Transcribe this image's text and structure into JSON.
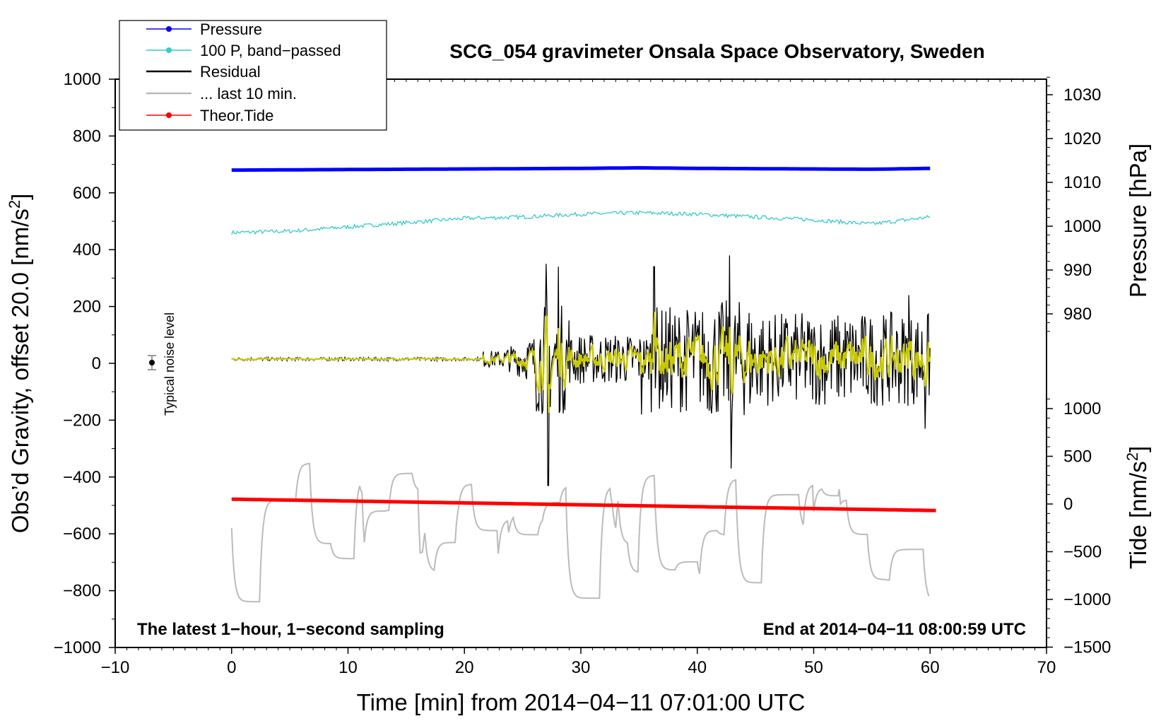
{
  "chart_data": {
    "type": "line",
    "title": "SCG_054 gravimeter Onsala Space Observatory, Sweden",
    "xlabel": "Time [min] from 2014−04−11 07:01:00 UTC",
    "ylabel_left": "Obs’d Gravity, offset 20.0 [nm/s",
    "ylabel_left_sup": "2",
    "ylabel_left_end": "]",
    "ylabel_right_pressure": "Pressure [hPa]",
    "ylabel_right_tide": "Tide [nm/s",
    "ylabel_right_tide_sup": "2",
    "ylabel_right_tide_end": "]",
    "xlim": [
      -10,
      70
    ],
    "ylim_left": [
      -1000,
      1000
    ],
    "x_ticks": [
      -10,
      0,
      10,
      20,
      30,
      40,
      50,
      60,
      70
    ],
    "x_tick_labels": [
      "−10",
      "0",
      "10",
      "20",
      "30",
      "40",
      "50",
      "60",
      "70"
    ],
    "y_ticks": [
      -1000,
      -800,
      -600,
      -400,
      -200,
      0,
      200,
      400,
      600,
      800,
      1000
    ],
    "y_tick_labels": [
      "−1000",
      "−800",
      "−600",
      "−400",
      "−200",
      "0",
      "200",
      "400",
      "600",
      "800",
      "1000"
    ],
    "pressure_ticks": [
      980,
      990,
      1000,
      1010,
      1020,
      1030
    ],
    "pressure_tick_labels": [
      "980",
      "990",
      "1000",
      "1010",
      "1020",
      "1030"
    ],
    "tide_ticks": [
      -1500,
      -1000,
      -500,
      0,
      500,
      1000
    ],
    "tide_tick_labels": [
      "−1500",
      "−1000",
      "−500",
      "0",
      "500",
      "1000"
    ],
    "annotation_left": "The latest 1−hour, 1−second sampling",
    "annotation_right": "End at 2014−04−11 08:00:59 UTC",
    "noise_label": "Typical noise level",
    "legend_position": "top-left",
    "legend": [
      {
        "label": "Pressure",
        "color": "#0000ff",
        "marker": true
      },
      {
        "label": "100 P, band−passed",
        "color": "#00cccc",
        "marker": true
      },
      {
        "label": "Residual",
        "color": "#000000",
        "marker": false
      },
      {
        "label": "... last 10 min.",
        "color": "#bbbbbb",
        "marker": false
      },
      {
        "label": "Theor.Tide",
        "color": "#ff0000",
        "marker": true
      }
    ],
    "series": {
      "pressure": {
        "name": "Pressure",
        "color": "#0000ff",
        "x": [
          0,
          10,
          20,
          30,
          35,
          40,
          50,
          55,
          60
        ],
        "y": [
          680,
          682,
          684,
          686,
          688,
          686,
          684,
          683,
          686
        ]
      },
      "pressure_bandpassed": {
        "name": "100 P, band−passed",
        "color": "#00cccc",
        "x": [
          0,
          5,
          10,
          15,
          20,
          25,
          30,
          35,
          40,
          45,
          50,
          55,
          57,
          60
        ],
        "y": [
          460,
          465,
          480,
          495,
          510,
          515,
          525,
          530,
          525,
          515,
          505,
          490,
          500,
          515
        ]
      },
      "residual": {
        "name": "Residual",
        "color": "#000000",
        "x_start": 0,
        "x_end": 60,
        "baseline": 15,
        "quiet_until": 21.5
      },
      "residual_last10": {
        "name": "... last 10 min.",
        "color": "#c8c800"
      },
      "last10_gray": {
        "name": "... last 10 min. (gray)",
        "color": "#bbbbbb",
        "x_start": 0,
        "x_end": 60
      },
      "theor_tide": {
        "name": "Theor.Tide",
        "color": "#ff0000",
        "x": [
          0,
          60.5
        ],
        "y": [
          -478,
          -518
        ]
      }
    }
  }
}
